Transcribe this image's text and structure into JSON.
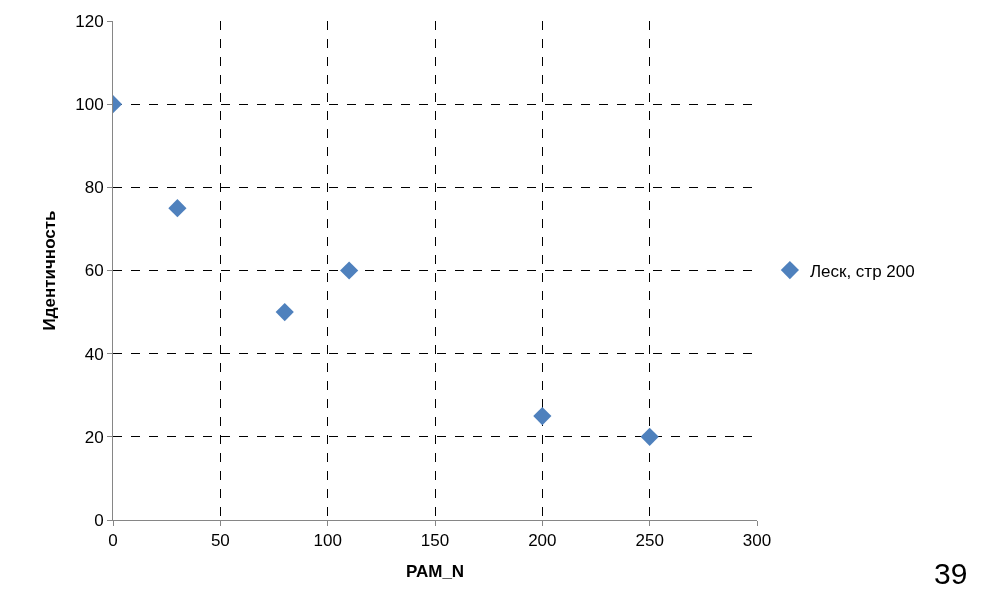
{
  "chart_data": {
    "type": "scatter",
    "xlabel": "PAM_N",
    "ylabel": "Идентичность",
    "x": [
      0,
      30,
      80,
      110,
      200,
      250
    ],
    "series": [
      {
        "name": "Леск, стр 200",
        "color": "#4f81bd",
        "values": [
          100,
          75,
          50,
          60,
          25,
          20
        ]
      }
    ],
    "xlim": [
      0,
      300
    ],
    "xticks": [
      0,
      50,
      100,
      150,
      200,
      250,
      300
    ],
    "ylim": [
      0,
      120
    ],
    "yticks": [
      0,
      20,
      40,
      60,
      80,
      100,
      120
    ],
    "grid": true,
    "legend": "right",
    "marker": "diamond",
    "annotations": [
      "39"
    ]
  }
}
